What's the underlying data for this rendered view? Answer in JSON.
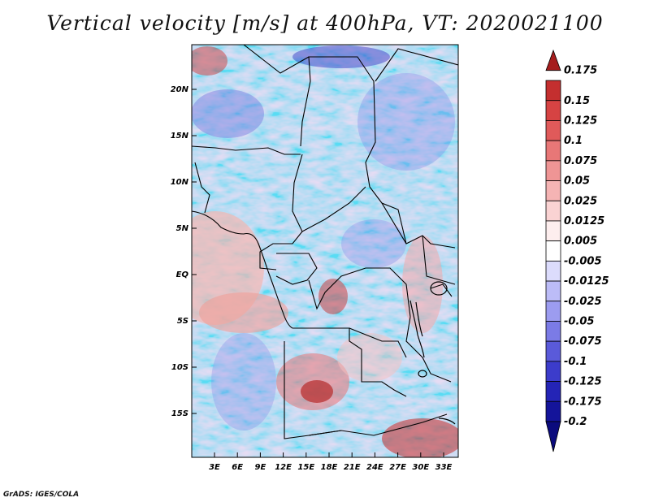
{
  "title": "Vertical velocity [m/s] at 400hPa, VT: 2020021100",
  "credit": "GrADS: IGES/COLA",
  "map": {
    "lat_labels": [
      "20N",
      "15N",
      "10N",
      "5N",
      "EQ",
      "5S",
      "10S",
      "15S"
    ],
    "lon_labels": [
      "3E",
      "6E",
      "9E",
      "12E",
      "15E",
      "18E",
      "21E",
      "24E",
      "27E",
      "30E",
      "33E"
    ]
  },
  "colorbar": {
    "labels": [
      "0.175",
      "0.15",
      "0.125",
      "0.1",
      "0.075",
      "0.05",
      "0.025",
      "0.0125",
      "0.005",
      "-0.005",
      "-0.0125",
      "-0.025",
      "-0.05",
      "-0.075",
      "-0.1",
      "-0.125",
      "-0.175",
      "-0.2"
    ],
    "colors": [
      "#a51d1d",
      "#c42f2f",
      "#d64343",
      "#e05a5a",
      "#e87777",
      "#ef9595",
      "#f5b4b4",
      "#fad3d3",
      "#fdeeee",
      "#ffffff",
      "#dcdcfc",
      "#bcbcf7",
      "#9c9cf0",
      "#7b7be6",
      "#5a5ada",
      "#3c3ccb",
      "#2424b6",
      "#14149a",
      "#0b0b7d"
    ]
  }
}
